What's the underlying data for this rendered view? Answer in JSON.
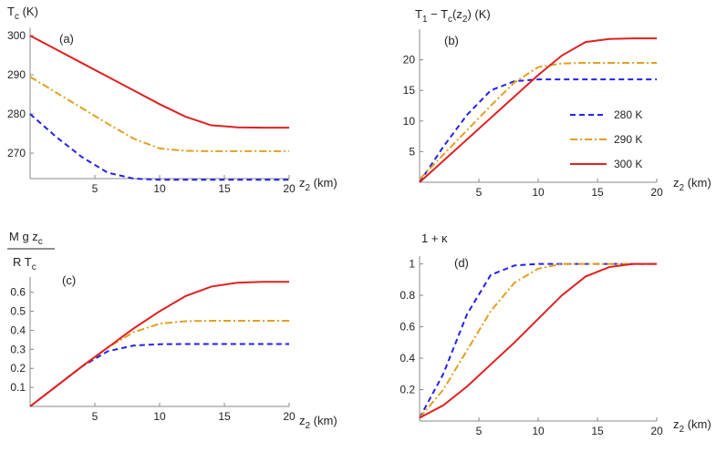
{
  "chart_data": [
    {
      "type": "line",
      "panel_label": "(a)",
      "y_label": [
        {
          "text": "T"
        },
        {
          "text": "c",
          "sub": true
        },
        {
          "text": " (K)"
        }
      ],
      "x_label": [
        {
          "text": "z"
        },
        {
          "text": "2",
          "sub": true
        },
        {
          "text": " (km)"
        }
      ],
      "x": [
        0,
        2,
        4,
        6,
        8,
        10,
        12,
        14,
        16,
        18,
        20
      ],
      "xlim": [
        0,
        20
      ],
      "xticks": [
        5,
        10,
        15,
        20
      ],
      "ylim": [
        263.5,
        302
      ],
      "yticks": [
        270,
        280,
        290,
        300
      ],
      "series": [
        {
          "color": "#2323e6",
          "dash": "dashed",
          "values": [
            280,
            274.2,
            269,
            265,
            263.5,
            263.2,
            263.2,
            263.2,
            263.2,
            263.2,
            263.2
          ]
        },
        {
          "color": "#e0a020",
          "dash": "dashdot",
          "values": [
            289.5,
            285.5,
            281.5,
            277.5,
            273.7,
            271.2,
            270.6,
            270.5,
            270.5,
            270.5,
            270.5
          ]
        },
        {
          "color": "#e02020",
          "dash": "solid",
          "values": [
            300,
            296.5,
            293,
            289.5,
            286,
            282.5,
            279.3,
            277.1,
            276.6,
            276.5,
            276.5
          ]
        }
      ]
    },
    {
      "type": "line",
      "panel_label": "(b)",
      "y_label": [
        {
          "text": "T"
        },
        {
          "text": "1",
          "sub": true
        },
        {
          "text": " − T"
        },
        {
          "text": "c",
          "sub": true
        },
        {
          "text": "(z"
        },
        {
          "text": "2",
          "sub": true
        },
        {
          "text": ") (K)"
        }
      ],
      "x_label": [
        {
          "text": "z"
        },
        {
          "text": "2",
          "sub": true
        },
        {
          "text": " (km)"
        }
      ],
      "x": [
        0,
        2,
        4,
        6,
        8,
        10,
        12,
        14,
        16,
        18,
        20
      ],
      "xlim": [
        0,
        20
      ],
      "xticks": [
        5,
        10,
        15,
        20
      ],
      "ylim": [
        0,
        25
      ],
      "yticks": [
        5,
        10,
        15,
        20
      ],
      "legend": "right",
      "series": [
        {
          "name": "280 K",
          "color": "#2323e6",
          "dash": "dashed",
          "values": [
            0,
            5.8,
            11,
            15,
            16.5,
            16.8,
            16.8,
            16.8,
            16.8,
            16.8,
            16.8
          ]
        },
        {
          "name": "290 K",
          "color": "#e0a020",
          "dash": "dashdot",
          "values": [
            0.5,
            4.5,
            8.5,
            12.5,
            16.3,
            18.8,
            19.4,
            19.5,
            19.5,
            19.5,
            19.5
          ]
        },
        {
          "name": "300 K",
          "color": "#e02020",
          "dash": "solid",
          "values": [
            0,
            3.5,
            7,
            10.5,
            14,
            17.5,
            20.7,
            22.9,
            23.4,
            23.5,
            23.5
          ]
        }
      ]
    },
    {
      "type": "line",
      "panel_label": "(c)",
      "y_label_num": [
        {
          "text": "M g z"
        },
        {
          "text": "c",
          "sub": true
        }
      ],
      "y_label_den": [
        {
          "text": "R T"
        },
        {
          "text": "c",
          "sub": true
        }
      ],
      "x_label": [
        {
          "text": "z"
        },
        {
          "text": "2",
          "sub": true
        },
        {
          "text": " (km)"
        }
      ],
      "x": [
        0,
        2,
        4,
        6,
        8,
        10,
        12,
        14,
        16,
        18,
        20
      ],
      "xlim": [
        0,
        20
      ],
      "xticks": [
        5,
        10,
        15,
        20
      ],
      "ylim": [
        0,
        0.68
      ],
      "yticks": [
        0.1,
        0.2,
        0.3,
        0.4,
        0.5,
        0.6
      ],
      "series": [
        {
          "color": "#2323e6",
          "dash": "dashed",
          "values": [
            0,
            0.105,
            0.21,
            0.29,
            0.32,
            0.327,
            0.328,
            0.328,
            0.328,
            0.328,
            0.328
          ]
        },
        {
          "color": "#e0a020",
          "dash": "dashdot",
          "values": [
            0,
            0.105,
            0.21,
            0.31,
            0.39,
            0.435,
            0.448,
            0.45,
            0.45,
            0.45,
            0.45
          ]
        },
        {
          "color": "#e02020",
          "dash": "solid",
          "values": [
            0,
            0.105,
            0.21,
            0.31,
            0.41,
            0.5,
            0.58,
            0.63,
            0.65,
            0.655,
            0.655
          ]
        }
      ]
    },
    {
      "type": "line",
      "panel_label": "(d)",
      "y_label": [
        {
          "text": "1 + κ"
        }
      ],
      "x_label": [
        {
          "text": "z"
        },
        {
          "text": "2",
          "sub": true
        },
        {
          "text": " (km)"
        }
      ],
      "x": [
        0,
        2,
        4,
        6,
        8,
        10,
        12,
        14,
        16,
        18,
        20
      ],
      "xlim": [
        0,
        20
      ],
      "xticks": [
        5,
        10,
        15,
        20
      ],
      "ylim": [
        0,
        1.05
      ],
      "yticks": [
        0.2,
        0.4,
        0.6,
        0.8,
        1.0
      ],
      "series": [
        {
          "color": "#2323e6",
          "dash": "dashed",
          "values": [
            0.02,
            0.3,
            0.68,
            0.93,
            0.99,
            1,
            1,
            1,
            1,
            1,
            1
          ]
        },
        {
          "color": "#e0a020",
          "dash": "dashdot",
          "values": [
            0.02,
            0.2,
            0.45,
            0.7,
            0.88,
            0.97,
            1,
            1,
            1,
            1,
            1
          ]
        },
        {
          "color": "#e02020",
          "dash": "solid",
          "values": [
            0.02,
            0.1,
            0.22,
            0.36,
            0.5,
            0.65,
            0.8,
            0.92,
            0.98,
            1,
            1
          ]
        }
      ]
    }
  ]
}
